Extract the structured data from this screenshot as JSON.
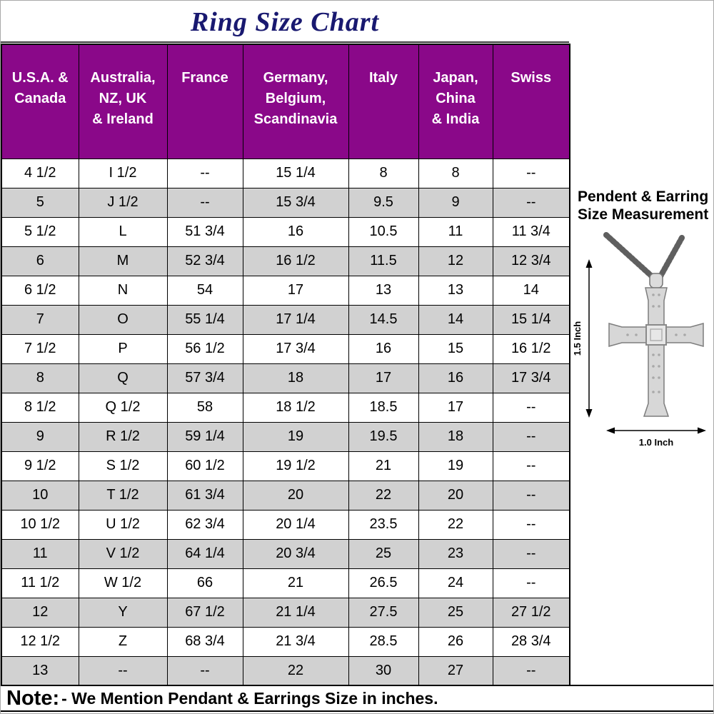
{
  "title": "Ring Size Chart",
  "table": {
    "headers": [
      "U.S.A. &\nCanada",
      "Australia,\nNZ, UK\n& Ireland",
      "France",
      "Germany,\nBelgium,\nScandinavia",
      "Italy",
      "Japan,\nChina\n& India",
      "Swiss"
    ],
    "rows": [
      [
        "4 1/2",
        "I 1/2",
        "--",
        "15 1/4",
        "8",
        "8",
        "--"
      ],
      [
        "5",
        "J 1/2",
        "--",
        "15 3/4",
        "9.5",
        "9",
        "--"
      ],
      [
        "5 1/2",
        "L",
        "51 3/4",
        "16",
        "10.5",
        "11",
        "11 3/4"
      ],
      [
        "6",
        "M",
        "52 3/4",
        "16 1/2",
        "11.5",
        "12",
        "12 3/4"
      ],
      [
        "6 1/2",
        "N",
        "54",
        "17",
        "13",
        "13",
        "14"
      ],
      [
        "7",
        "O",
        "55 1/4",
        "17 1/4",
        "14.5",
        "14",
        "15 1/4"
      ],
      [
        "7 1/2",
        "P",
        "56 1/2",
        "17 3/4",
        "16",
        "15",
        "16 1/2"
      ],
      [
        "8",
        "Q",
        "57 3/4",
        "18",
        "17",
        "16",
        "17 3/4"
      ],
      [
        "8 1/2",
        "Q 1/2",
        "58",
        "18 1/2",
        "18.5",
        "17",
        "--"
      ],
      [
        "9",
        "R 1/2",
        "59 1/4",
        "19",
        "19.5",
        "18",
        "--"
      ],
      [
        "9 1/2",
        "S 1/2",
        "60 1/2",
        "19 1/2",
        "21",
        "19",
        "--"
      ],
      [
        "10",
        "T 1/2",
        "61 3/4",
        "20",
        "22",
        "20",
        "--"
      ],
      [
        "10 1/2",
        "U 1/2",
        "62 3/4",
        "20 1/4",
        "23.5",
        "22",
        "--"
      ],
      [
        "11",
        "V 1/2",
        "64 1/4",
        "20 3/4",
        "25",
        "23",
        "--"
      ],
      [
        "11 1/2",
        "W 1/2",
        "66",
        "21",
        "26.5",
        "24",
        "--"
      ],
      [
        "12",
        "Y",
        "67 1/2",
        "21 1/4",
        "27.5",
        "25",
        "27 1/2"
      ],
      [
        "12 1/2",
        "Z",
        "68 3/4",
        "21 3/4",
        "28.5",
        "26",
        "28 3/4"
      ],
      [
        "13",
        "--",
        "--",
        "22",
        "30",
        "27",
        "--"
      ]
    ]
  },
  "sidebar": {
    "heading": "Pendent & Earring Size Measurement",
    "height_label": "1.5 Inch",
    "width_label": "1.0 Inch"
  },
  "note": {
    "prefix": "Note:",
    "text": "- We Mention Pendant & Earrings Size in inches."
  },
  "colors": {
    "header_bg": "#8A0889",
    "header_text": "#FFFFFF",
    "row_alt_bg": "#D1D1D1",
    "title_color": "#191970"
  }
}
